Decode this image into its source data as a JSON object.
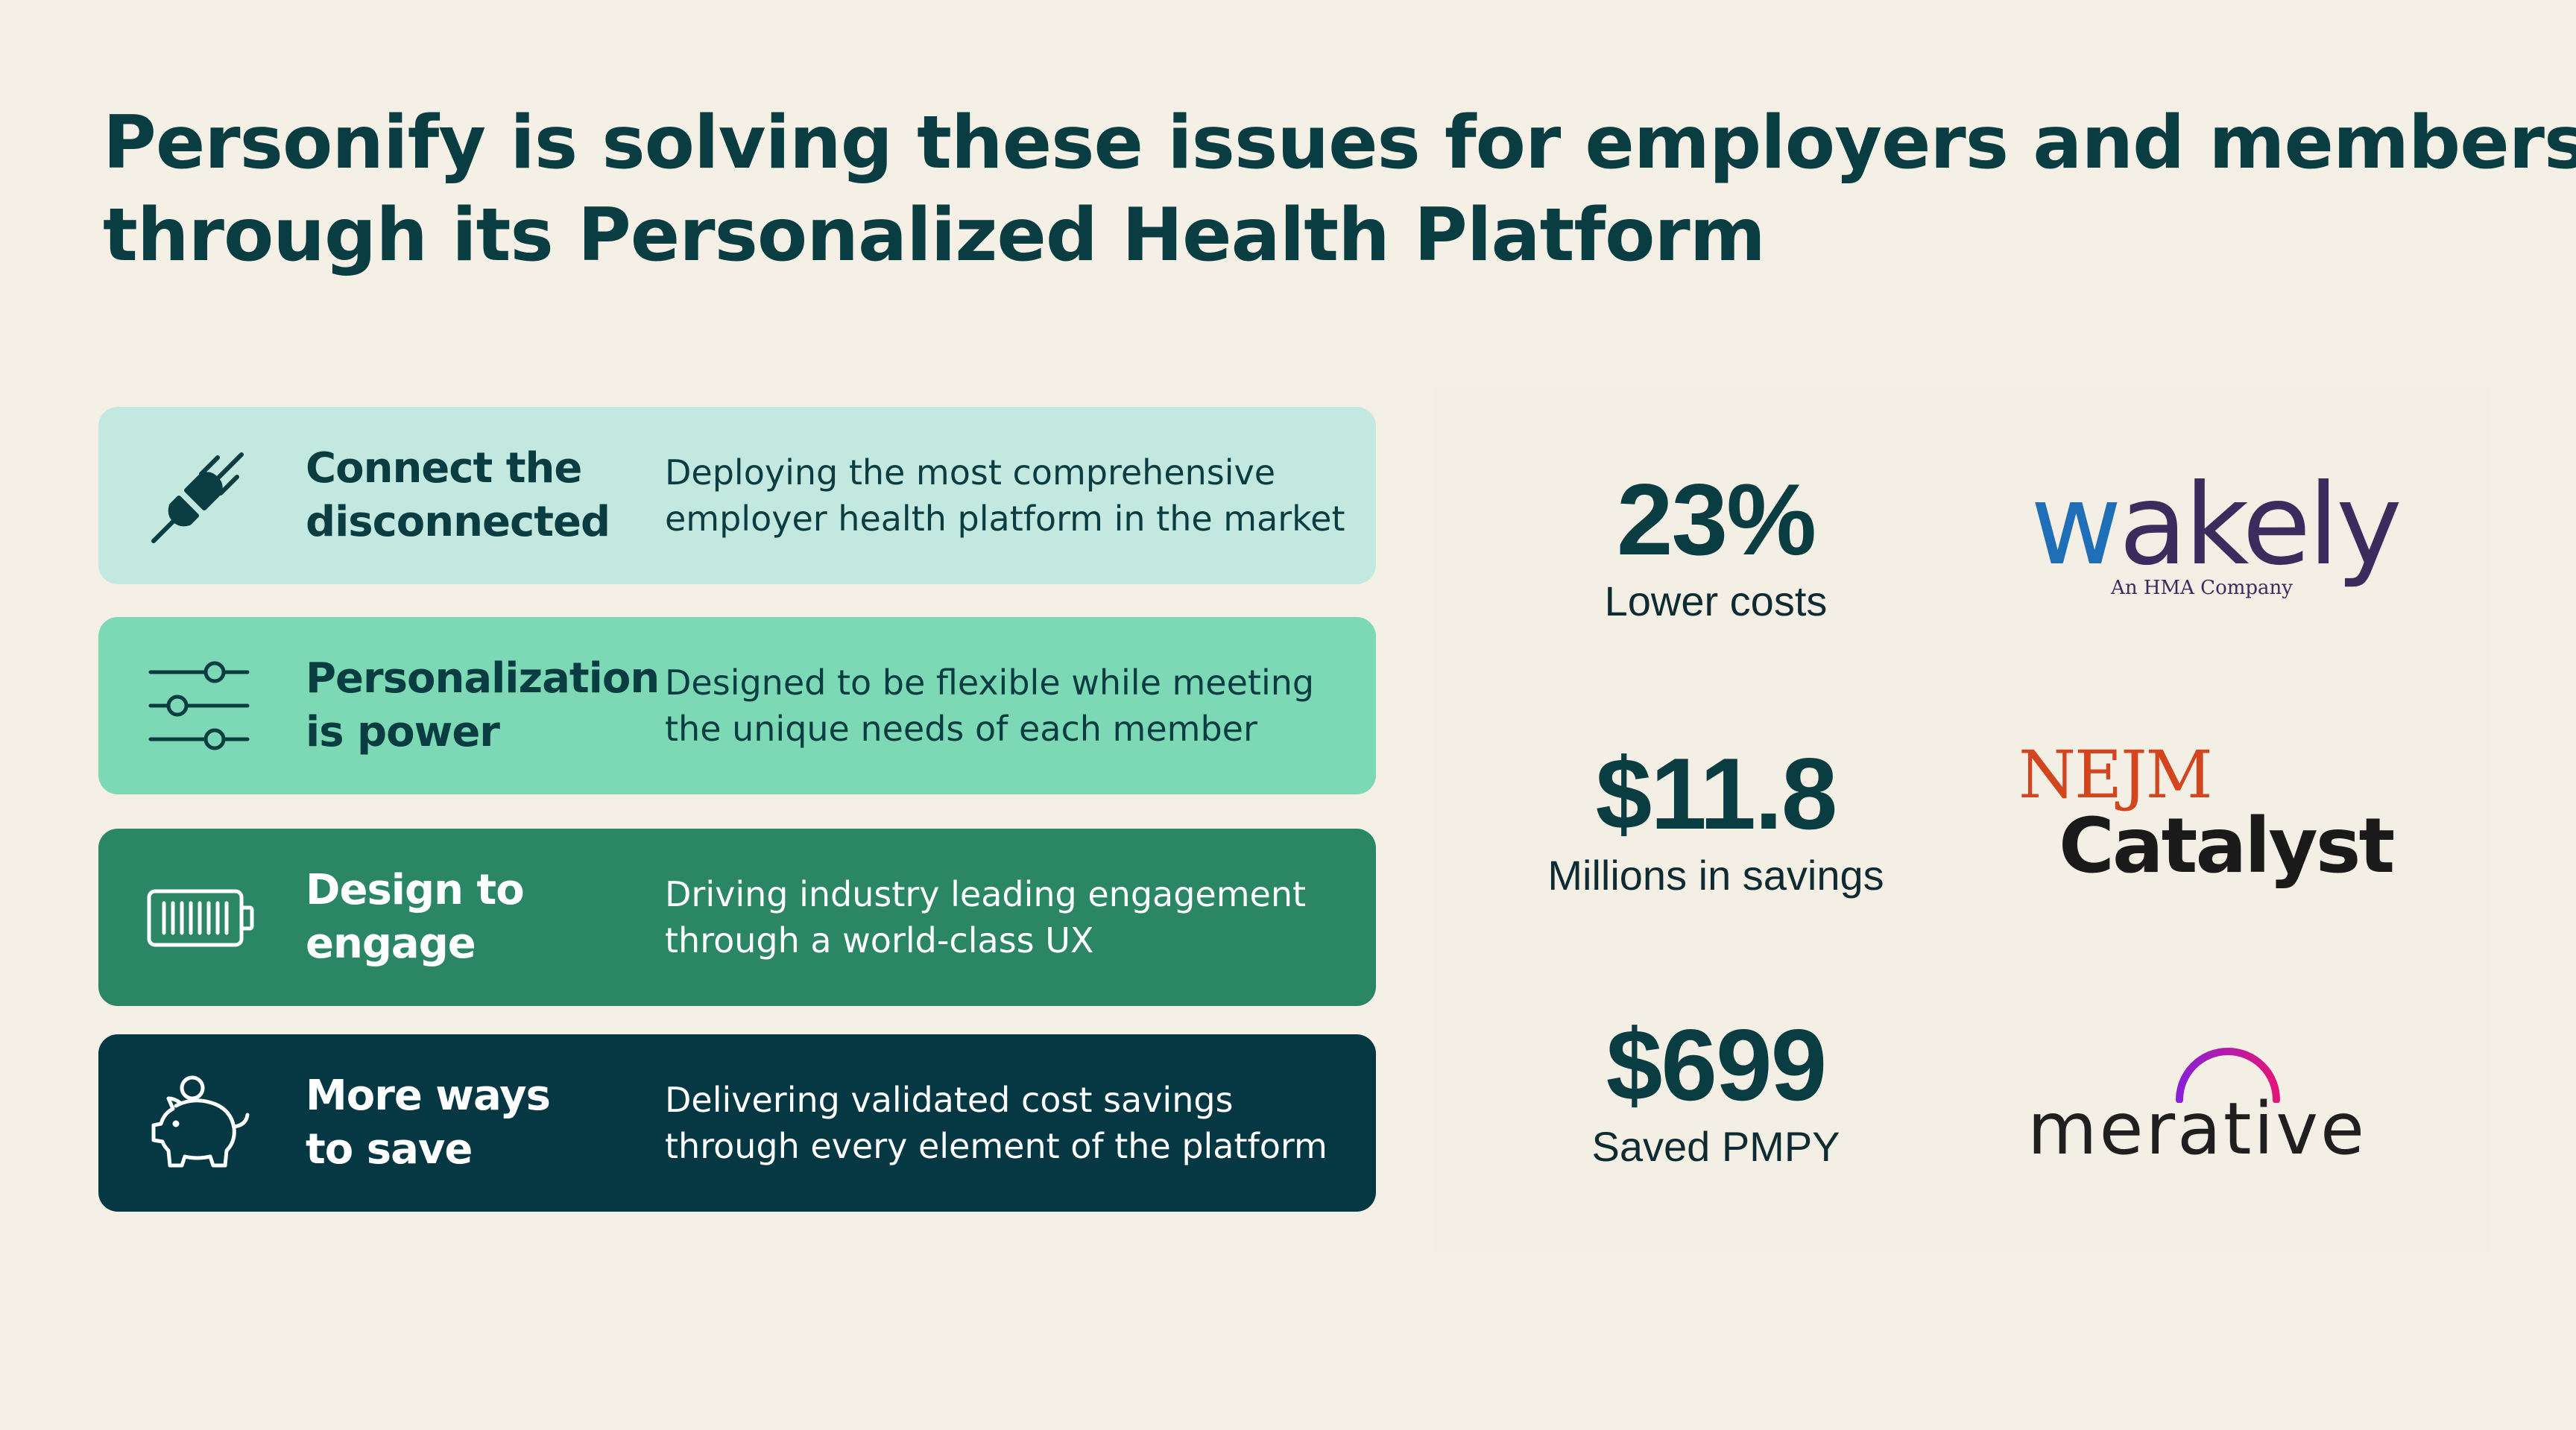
{
  "title": {
    "line1": "Personify is solving these issues for employers and members",
    "line2": "through its Personalized Health Platform"
  },
  "cards": [
    {
      "icon": "plug-icon",
      "heading_line1": "Connect the",
      "heading_line2": "disconnected",
      "desc_line1": "Deploying the most comprehensive",
      "desc_line2": "employer health platform in the market",
      "background": "#c3e8df"
    },
    {
      "icon": "sliders-icon",
      "heading_line1": "Personalization",
      "heading_line2": "is power",
      "desc_line1": "Designed to be flexible while meeting",
      "desc_line2": "the unique needs of each member",
      "background": "#7dd8b6"
    },
    {
      "icon": "battery-icon",
      "heading_line1": "Design to",
      "heading_line2": "engage",
      "desc_line1": "Driving industry leading engagement",
      "desc_line2": "through a world-class UX",
      "background": "#2a8664"
    },
    {
      "icon": "piggy-bank-icon",
      "heading_line1": "More ways",
      "heading_line2": "to save",
      "desc_line1": "Delivering validated cost savings",
      "desc_line2": "through every element of the platform",
      "background": "#053843"
    }
  ],
  "stats": [
    {
      "value": "23%",
      "label": "Lower costs"
    },
    {
      "value": "$11.8",
      "label": "Millions in savings"
    },
    {
      "value": "$699",
      "label": "Saved PMPY"
    }
  ],
  "logos": {
    "wakely": {
      "w": "w",
      "rest": "akely",
      "tagline": "An HMA Company"
    },
    "nejm": {
      "top": "NEJM",
      "bottom": "Catalyst"
    },
    "merative": {
      "word": "merative"
    }
  }
}
